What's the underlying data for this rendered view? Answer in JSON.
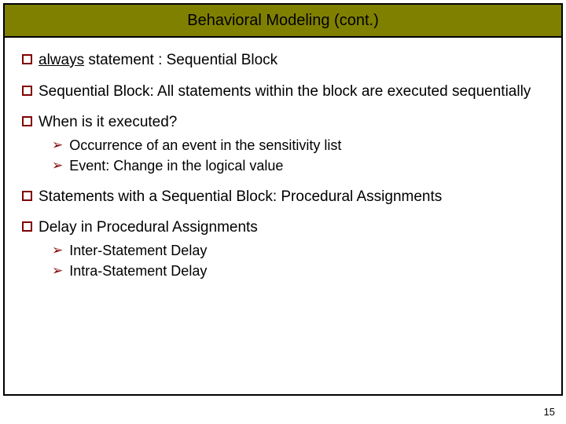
{
  "colors": {
    "title_bg": "#808000",
    "bullet_border": "#800000",
    "arrow": "#800000",
    "text": "#000000",
    "slide_border": "#000000",
    "page_bg": "#ffffff"
  },
  "typography": {
    "title_fontsize": 20,
    "bullet_fontsize": 19,
    "sub_fontsize": 18,
    "pagenum_fontsize": 13,
    "font_family": "Verdana, Arial, sans-serif"
  },
  "title": "Behavioral Modeling (cont.)",
  "bullets": {
    "b1_underlined": "always",
    "b1_rest": " statement : Sequential Block",
    "b2": "Sequential Block: All statements within the block are executed sequentially",
    "b3": "When is it executed?",
    "b3_subs": {
      "s1": "Occurrence of an event in the sensitivity list",
      "s2": "Event: Change in the logical value"
    },
    "b4": "Statements with a Sequential Block: Procedural Assignments",
    "b5": "Delay in Procedural Assignments",
    "b5_subs": {
      "s1": "Inter-Statement Delay",
      "s2": "Intra-Statement Delay"
    }
  },
  "page_number": "15"
}
